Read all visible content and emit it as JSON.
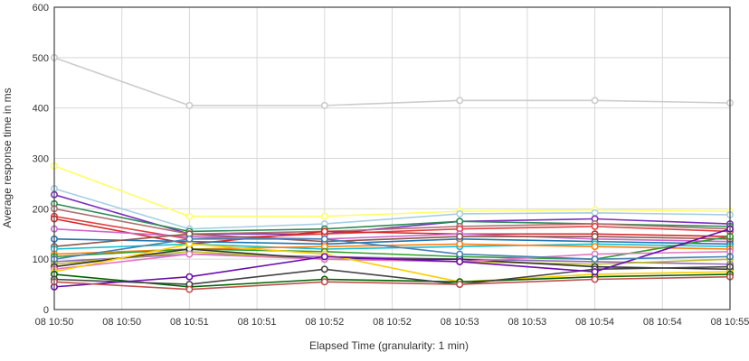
{
  "chart_data": {
    "type": "line",
    "title": "",
    "xlabel": "Elapsed Time (granularity: 1 min)",
    "ylabel": "Average response time in ms",
    "x_tick_labels": [
      "08 10:50",
      "08 10:50",
      "08 10:51",
      "08 10:51",
      "08 10:52",
      "08 10:52",
      "08 10:53",
      "08 10:53",
      "08 10:54",
      "08 10:54",
      "08 10:55"
    ],
    "x_points": [
      "08 10:50",
      "08 10:51",
      "08 10:52",
      "08 10:53",
      "08 10:54",
      "08 10:55"
    ],
    "ylim": [
      0,
      600
    ],
    "y_ticks": [
      0,
      100,
      200,
      300,
      400,
      500,
      600
    ],
    "grid": true,
    "legend": "none",
    "series": [
      {
        "color": "#cccccc",
        "values": [
          500,
          405,
          405,
          415,
          415,
          410
        ]
      },
      {
        "color": "#ffff66",
        "values": [
          285,
          185,
          185,
          195,
          198,
          195
        ]
      },
      {
        "color": "#a6cee3",
        "values": [
          240,
          160,
          170,
          190,
          192,
          188
        ]
      },
      {
        "color": "#7b2fbe",
        "values": [
          228,
          150,
          150,
          175,
          180,
          170
        ]
      },
      {
        "color": "#2e8b57",
        "values": [
          210,
          155,
          160,
          175,
          170,
          165
        ]
      },
      {
        "color": "#b07070",
        "values": [
          200,
          150,
          155,
          165,
          170,
          160
        ]
      },
      {
        "color": "#e04040",
        "values": [
          185,
          140,
          150,
          160,
          165,
          155
        ]
      },
      {
        "color": "#d62728",
        "values": [
          180,
          130,
          155,
          150,
          150,
          145
        ]
      },
      {
        "color": "#cc66cc",
        "values": [
          160,
          145,
          140,
          150,
          140,
          135
        ]
      },
      {
        "color": "#1f77b4",
        "values": [
          140,
          135,
          130,
          140,
          135,
          130
        ]
      },
      {
        "color": "#8c564b",
        "values": [
          125,
          150,
          135,
          145,
          145,
          140
        ]
      },
      {
        "color": "#17becf",
        "values": [
          120,
          130,
          120,
          125,
          130,
          125
        ]
      },
      {
        "color": "#ff7f0e",
        "values": [
          110,
          120,
          125,
          130,
          125,
          120
        ]
      },
      {
        "color": "#2ca02c",
        "values": [
          105,
          120,
          115,
          105,
          100,
          145
        ]
      },
      {
        "color": "#9467bd",
        "values": [
          95,
          110,
          105,
          100,
          95,
          90
        ]
      },
      {
        "color": "#bcbd22",
        "values": [
          90,
          115,
          100,
          95,
          90,
          100
        ]
      },
      {
        "color": "#333333",
        "values": [
          85,
          120,
          100,
          100,
          85,
          80
        ]
      },
      {
        "color": "#e377c2",
        "values": [
          80,
          110,
          100,
          95,
          110,
          115
        ]
      },
      {
        "color": "#ffcc00",
        "values": [
          75,
          130,
          110,
          55,
          70,
          75
        ]
      },
      {
        "color": "#006400",
        "values": [
          70,
          45,
          60,
          55,
          65,
          70
        ]
      },
      {
        "color": "#444444",
        "values": [
          60,
          50,
          80,
          50,
          80,
          85
        ]
      },
      {
        "color": "#6a0dad",
        "values": [
          45,
          65,
          105,
          95,
          75,
          160
        ]
      },
      {
        "color": "#c0504d",
        "values": [
          55,
          40,
          55,
          50,
          60,
          65
        ]
      },
      {
        "color": "#4682b4",
        "values": [
          100,
          140,
          140,
          110,
          100,
          105
        ]
      }
    ]
  }
}
